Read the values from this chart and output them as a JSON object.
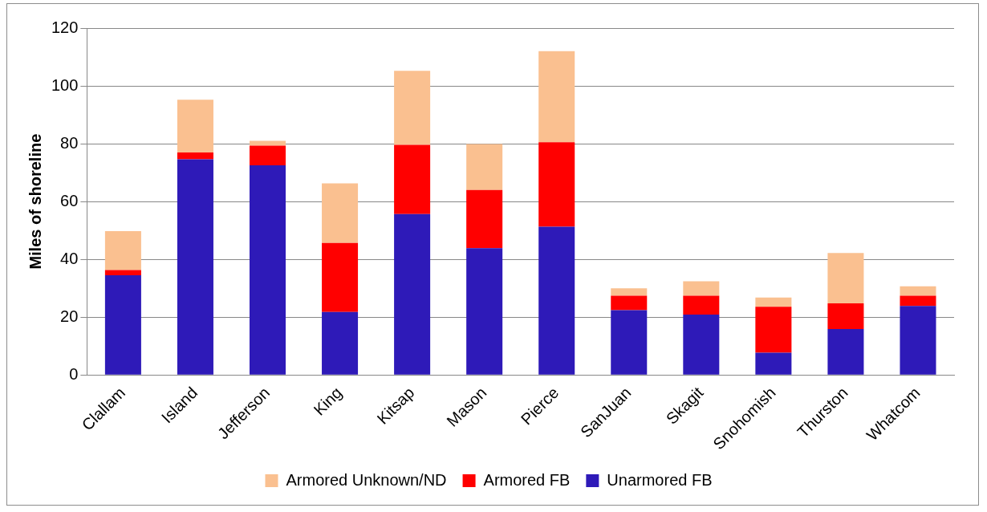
{
  "chart_data": {
    "type": "bar",
    "stacked": true,
    "ylabel": "Miles of shoreline",
    "categories": [
      "Clallam",
      "Island",
      "Jefferson",
      "King",
      "Kitsap",
      "Mason",
      "Pierce",
      "SanJuan",
      "Skagit",
      "Snohomish",
      "Thurston",
      "Whatcom"
    ],
    "series": [
      {
        "name": "Unarmored FB",
        "color": "#2e1ab8",
        "values": [
          34.5,
          74.6,
          72.5,
          21.8,
          55.7,
          43.9,
          51.3,
          22.4,
          20.9,
          7.7,
          15.9,
          23.9
        ]
      },
      {
        "name": "Armored FB",
        "color": "#ff0000",
        "values": [
          1.8,
          2.4,
          6.8,
          23.9,
          23.9,
          20.1,
          29.2,
          5,
          6.5,
          15.9,
          8.9,
          3.5
        ]
      },
      {
        "name": "Armored Unknown/ND",
        "color": "#fac090",
        "values": [
          13.5,
          18.2,
          1.7,
          20.6,
          25.6,
          15.9,
          31.5,
          2.6,
          5,
          3.2,
          17.4,
          3.3
        ]
      }
    ],
    "ylim": [
      0,
      120
    ],
    "yticks": [
      0,
      20,
      40,
      60,
      80,
      100,
      120
    ],
    "grid": "y",
    "legend": "bottom"
  }
}
